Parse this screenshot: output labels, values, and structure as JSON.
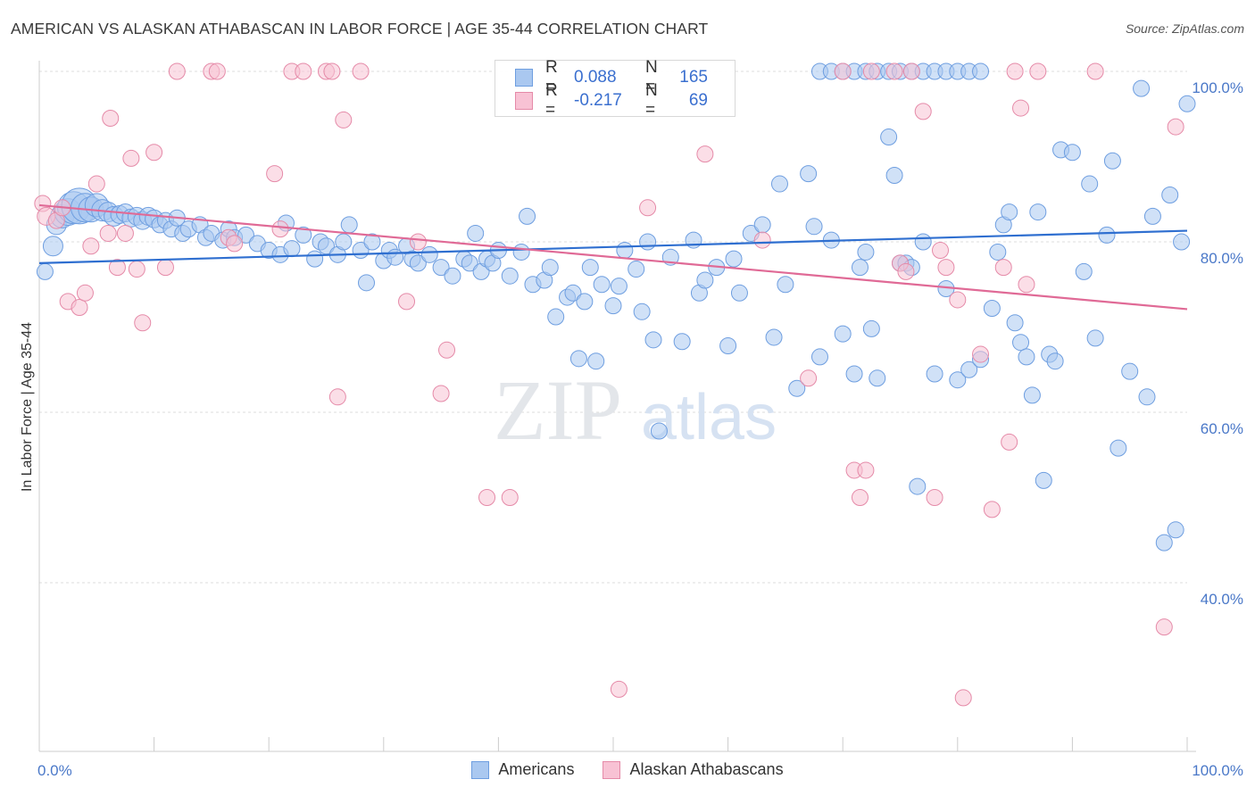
{
  "header": {
    "title": "AMERICAN VS ALASKAN ATHABASCAN IN LABOR FORCE | AGE 35-44 CORRELATION CHART",
    "source": "Source: ZipAtlas.com"
  },
  "watermark": {
    "zip": "ZIP",
    "atlas": "atlas"
  },
  "legend": {
    "rows": [
      {
        "r_label": "R =",
        "r_value": "0.088",
        "n_label": "N =",
        "n_value": "165",
        "color": "#aac8f0",
        "border": "#6e9ee0"
      },
      {
        "r_label": "R =",
        "r_value": "-0.217",
        "n_label": "N =",
        "n_value": "69",
        "color": "#f8c2d4",
        "border": "#e58aa8"
      }
    ]
  },
  "bottom_legend": [
    {
      "label": "Americans",
      "color": "#aac8f0",
      "border": "#6e9ee0"
    },
    {
      "label": "Alaskan Athabascans",
      "color": "#f8c2d4",
      "border": "#e58aa8"
    }
  ],
  "chart_data": {
    "type": "scatter",
    "title": "AMERICAN VS ALASKAN ATHABASCAN IN LABOR FORCE | AGE 35-44 CORRELATION CHART",
    "xlabel": "",
    "ylabel": "In Labor Force | Age 35-44",
    "xlim": [
      0,
      100
    ],
    "ylim": [
      18,
      101
    ],
    "x_tick_labels": [
      "0.0%",
      "100.0%"
    ],
    "y_ticks": [
      40,
      60,
      80,
      100
    ],
    "y_tick_labels": [
      "40.0%",
      "60.0%",
      "80.0%",
      "100.0%"
    ],
    "grid": true,
    "series": [
      {
        "name": "Americans",
        "color": "#6e9ee0",
        "fill": "#aac8f0",
        "trend": {
          "x": [
            0,
            100
          ],
          "y": [
            77.5,
            81.3
          ]
        },
        "points": [
          [
            0.5,
            76.5,
            9
          ],
          [
            1.2,
            79.5,
            11
          ],
          [
            1.5,
            82,
            11
          ],
          [
            2,
            83,
            13
          ],
          [
            2.5,
            83.5,
            15
          ],
          [
            3,
            84,
            18
          ],
          [
            3.5,
            84.2,
            20
          ],
          [
            4,
            84,
            16
          ],
          [
            4.5,
            83.8,
            14
          ],
          [
            5,
            84.3,
            13
          ],
          [
            5.5,
            83.7,
            12
          ],
          [
            6,
            83.5,
            11
          ],
          [
            6.5,
            83,
            11
          ],
          [
            7,
            83.2,
            10
          ],
          [
            7.5,
            83.4,
            10
          ],
          [
            8,
            82.8,
            10
          ],
          [
            8.5,
            83,
            10
          ],
          [
            9,
            82.5,
            10
          ],
          [
            9.5,
            83,
            10
          ],
          [
            10,
            82.7,
            10
          ],
          [
            10.5,
            82,
            9
          ],
          [
            11,
            82.5,
            9
          ],
          [
            11.5,
            81.5,
            9
          ],
          [
            12,
            82.8,
            9
          ],
          [
            12.5,
            81,
            9
          ],
          [
            13,
            81.5,
            9
          ],
          [
            14,
            82,
            9
          ],
          [
            14.5,
            80.5,
            9
          ],
          [
            15,
            81,
            9
          ],
          [
            16,
            80.2,
            9
          ],
          [
            16.5,
            81.5,
            9
          ],
          [
            17,
            80.5,
            9
          ],
          [
            18,
            80.8,
            9
          ],
          [
            19,
            79.8,
            9
          ],
          [
            20,
            79,
            9
          ],
          [
            21,
            78.5,
            9
          ],
          [
            21.5,
            82.2,
            9
          ],
          [
            22,
            79.2,
            9
          ],
          [
            23,
            80.8,
            9
          ],
          [
            24,
            78,
            9
          ],
          [
            24.5,
            80,
            9
          ],
          [
            25,
            79.5,
            9
          ],
          [
            26,
            78.5,
            9
          ],
          [
            26.5,
            80,
            9
          ],
          [
            27,
            82,
            9
          ],
          [
            28,
            79,
            9
          ],
          [
            28.5,
            75.2,
            9
          ],
          [
            29,
            80,
            9
          ],
          [
            30,
            77.8,
            9
          ],
          [
            30.5,
            79,
            9
          ],
          [
            31,
            78.2,
            9
          ],
          [
            32,
            79.5,
            9
          ],
          [
            32.5,
            78,
            9
          ],
          [
            33,
            77.5,
            9
          ],
          [
            34,
            78.5,
            9
          ],
          [
            35,
            77,
            9
          ],
          [
            36,
            76,
            9
          ],
          [
            37,
            78,
            9
          ],
          [
            37.5,
            77.5,
            9
          ],
          [
            38,
            81,
            9
          ],
          [
            38.5,
            76.5,
            9
          ],
          [
            39,
            78,
            9
          ],
          [
            39.5,
            77.5,
            9
          ],
          [
            40,
            79,
            9
          ],
          [
            41,
            76,
            9
          ],
          [
            42,
            78.8,
            9
          ],
          [
            42.5,
            83,
            9
          ],
          [
            43,
            75,
            9
          ],
          [
            44,
            75.5,
            9
          ],
          [
            44.5,
            77,
            9
          ],
          [
            45,
            71.2,
            9
          ],
          [
            46,
            73.5,
            9
          ],
          [
            46.5,
            74,
            9
          ],
          [
            47,
            66.3,
            9
          ],
          [
            47.5,
            73,
            9
          ],
          [
            48,
            77,
            9
          ],
          [
            48.5,
            66,
            9
          ],
          [
            49,
            75,
            9
          ],
          [
            50,
            72.5,
            9
          ],
          [
            50.5,
            74.8,
            9
          ],
          [
            51,
            79,
            9
          ],
          [
            52,
            76.8,
            9
          ],
          [
            52.5,
            71.8,
            9
          ],
          [
            53,
            80,
            9
          ],
          [
            53.5,
            68.5,
            9
          ],
          [
            54,
            57.8,
            9
          ],
          [
            55,
            78.2,
            9
          ],
          [
            56,
            68.3,
            9
          ],
          [
            57,
            80.2,
            9
          ],
          [
            57.5,
            74,
            9
          ],
          [
            58,
            75.5,
            9
          ],
          [
            59,
            77,
            9
          ],
          [
            60,
            67.8,
            9
          ],
          [
            60.5,
            78,
            9
          ],
          [
            61,
            74,
            9
          ],
          [
            62,
            81,
            9
          ],
          [
            63,
            82,
            9
          ],
          [
            64,
            68.8,
            9
          ],
          [
            64.5,
            86.8,
            9
          ],
          [
            65,
            75,
            9
          ],
          [
            66,
            62.8,
            9
          ],
          [
            67,
            88,
            9
          ],
          [
            67.5,
            81.8,
            9
          ],
          [
            68,
            66.5,
            9
          ],
          [
            69,
            80.2,
            9
          ],
          [
            70,
            69.2,
            9
          ],
          [
            71,
            64.5,
            9
          ],
          [
            71.5,
            77,
            9
          ],
          [
            72,
            78.8,
            9
          ],
          [
            72.5,
            69.8,
            9
          ],
          [
            73,
            64,
            9
          ],
          [
            74,
            92.3,
            9
          ],
          [
            74.5,
            87.8,
            9
          ],
          [
            75,
            77.5,
            9
          ],
          [
            75.5,
            77.5,
            9
          ],
          [
            76,
            77,
            9
          ],
          [
            76.5,
            51.3,
            9
          ],
          [
            77,
            80,
            9
          ],
          [
            78,
            64.5,
            9
          ],
          [
            79,
            74.5,
            9
          ],
          [
            80,
            63.8,
            9
          ],
          [
            81,
            65,
            9
          ],
          [
            82,
            66.2,
            9
          ],
          [
            83,
            72.2,
            9
          ],
          [
            83.5,
            78.8,
            9
          ],
          [
            84,
            82,
            9
          ],
          [
            84.5,
            83.5,
            9
          ],
          [
            85,
            70.5,
            9
          ],
          [
            85.5,
            68.2,
            9
          ],
          [
            86,
            66.5,
            9
          ],
          [
            86.5,
            62,
            9
          ],
          [
            87,
            83.5,
            9
          ],
          [
            87.5,
            52,
            9
          ],
          [
            88,
            66.8,
            9
          ],
          [
            88.5,
            66,
            9
          ],
          [
            89,
            90.8,
            9
          ],
          [
            90,
            90.5,
            9
          ],
          [
            91,
            76.5,
            9
          ],
          [
            91.5,
            86.8,
            9
          ],
          [
            92,
            68.7,
            9
          ],
          [
            93,
            80.8,
            9
          ],
          [
            93.5,
            89.5,
            9
          ],
          [
            94,
            55.8,
            9
          ],
          [
            95,
            64.8,
            9
          ],
          [
            96,
            98,
            9
          ],
          [
            96.5,
            61.8,
            9
          ],
          [
            97,
            83,
            9
          ],
          [
            98,
            44.7,
            9
          ],
          [
            98.5,
            85.5,
            9
          ],
          [
            99,
            46.2,
            9
          ],
          [
            99.5,
            80,
            9
          ],
          [
            100,
            96.2,
            9
          ],
          [
            68,
            100,
            9
          ],
          [
            69,
            100,
            9
          ],
          [
            70,
            100,
            9
          ],
          [
            71,
            100,
            9
          ],
          [
            72,
            100,
            9
          ],
          [
            73,
            100,
            9
          ],
          [
            74,
            100,
            9
          ],
          [
            75,
            100,
            9
          ],
          [
            76,
            100,
            9
          ],
          [
            77,
            100,
            9
          ],
          [
            78,
            100,
            9
          ],
          [
            79,
            100,
            9
          ],
          [
            80,
            100,
            9
          ],
          [
            81,
            100,
            9
          ],
          [
            82,
            100,
            9
          ]
        ]
      },
      {
        "name": "Alaskan Athabascans",
        "color": "#e58aa8",
        "fill": "#f8c2d4",
        "trend": {
          "x": [
            0,
            100
          ],
          "y": [
            84.3,
            72.1
          ]
        },
        "points": [
          [
            0.3,
            84.5,
            9
          ],
          [
            0.6,
            83,
            10
          ],
          [
            1.5,
            82.5,
            9
          ],
          [
            2,
            84,
            9
          ],
          [
            2.5,
            73,
            9
          ],
          [
            3.5,
            72.3,
            9
          ],
          [
            4,
            74,
            9
          ],
          [
            4.5,
            79.5,
            9
          ],
          [
            5,
            86.8,
            9
          ],
          [
            6,
            81,
            9
          ],
          [
            6.2,
            94.5,
            9
          ],
          [
            6.8,
            77,
            9
          ],
          [
            7.5,
            81,
            9
          ],
          [
            8,
            89.8,
            9
          ],
          [
            8.5,
            76.8,
            9
          ],
          [
            9,
            70.5,
            9
          ],
          [
            10,
            90.5,
            9
          ],
          [
            11,
            77,
            9
          ],
          [
            12,
            100,
            9
          ],
          [
            15,
            100,
            9
          ],
          [
            15.5,
            100,
            9
          ],
          [
            16.5,
            80.5,
            9
          ],
          [
            17,
            79.8,
            9
          ],
          [
            20.5,
            88,
            9
          ],
          [
            21,
            81.5,
            9
          ],
          [
            22,
            100,
            9
          ],
          [
            23,
            100,
            9
          ],
          [
            25,
            100,
            9
          ],
          [
            25.5,
            100,
            9
          ],
          [
            26,
            61.8,
            9
          ],
          [
            26.5,
            94.3,
            9
          ],
          [
            28,
            100,
            9
          ],
          [
            32,
            73,
            9
          ],
          [
            33,
            80,
            9
          ],
          [
            35,
            62.2,
            9
          ],
          [
            35.5,
            67.3,
            9
          ],
          [
            39,
            50,
            9
          ],
          [
            41,
            50,
            9
          ],
          [
            50.5,
            27.5,
            9
          ],
          [
            53,
            84,
            9
          ],
          [
            58,
            90.3,
            9
          ],
          [
            63,
            80.2,
            9
          ],
          [
            67,
            64,
            9
          ],
          [
            70,
            100,
            9
          ],
          [
            71,
            53.2,
            9
          ],
          [
            71.5,
            50,
            9
          ],
          [
            72,
            53.2,
            9
          ],
          [
            72.5,
            100,
            9
          ],
          [
            74.5,
            100,
            9
          ],
          [
            75,
            77.5,
            9
          ],
          [
            75.5,
            76.5,
            9
          ],
          [
            76,
            100,
            9
          ],
          [
            77,
            95.3,
            9
          ],
          [
            78,
            50,
            9
          ],
          [
            78.5,
            79,
            9
          ],
          [
            79,
            77,
            9
          ],
          [
            80,
            73.2,
            9
          ],
          [
            80.5,
            26.5,
            9
          ],
          [
            82,
            66.8,
            9
          ],
          [
            83,
            48.6,
            9
          ],
          [
            84,
            77,
            9
          ],
          [
            84.5,
            56.5,
            9
          ],
          [
            85,
            100,
            9
          ],
          [
            85.5,
            95.7,
            9
          ],
          [
            86,
            75,
            9
          ],
          [
            87,
            100,
            9
          ],
          [
            98,
            34.8,
            9
          ],
          [
            99,
            93.5,
            9
          ],
          [
            92,
            100,
            9
          ]
        ]
      }
    ]
  }
}
